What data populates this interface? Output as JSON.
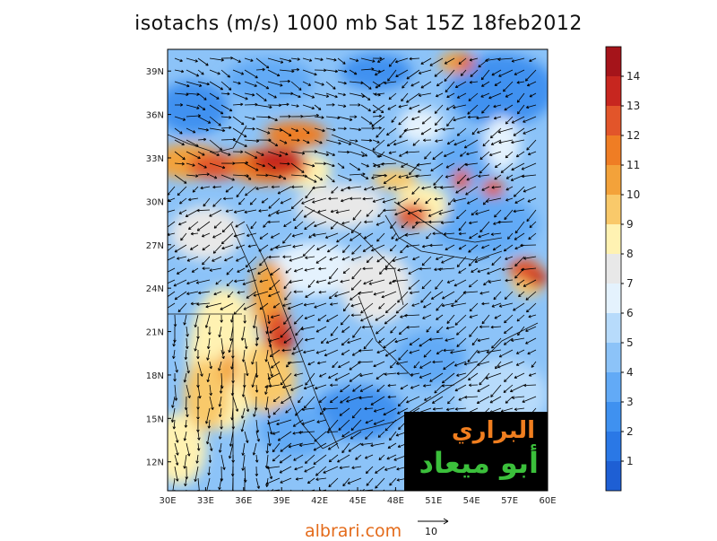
{
  "title": "isotachs (m/s) 1000 mb Sat 15Z 18feb2012",
  "map": {
    "lon_ticks": [
      "30E",
      "33E",
      "36E",
      "39E",
      "42E",
      "45E",
      "48E",
      "51E",
      "54E",
      "57E",
      "60E"
    ],
    "lat_ticks": [
      "12N",
      "15N",
      "18N",
      "21N",
      "24N",
      "27N",
      "30N",
      "33N",
      "36N",
      "39N"
    ],
    "lon_range": [
      30,
      60
    ],
    "lat_range": [
      10,
      40.5
    ]
  },
  "colorbar": {
    "labels": [
      "1",
      "2",
      "3",
      "4",
      "5",
      "6",
      "7",
      "8",
      "9",
      "10",
      "11",
      "12",
      "13",
      "14"
    ],
    "colors": [
      "#1e5fd4",
      "#2a78e6",
      "#3f91f0",
      "#62aaf6",
      "#8cc3f8",
      "#b7dbfb",
      "#e4f2fd",
      "#e8e8e8",
      "#fff2b2",
      "#f9c96a",
      "#f3a23a",
      "#ef7d24",
      "#e2552a",
      "#c7261f",
      "#a5141a"
    ]
  },
  "logo": {
    "line1": "البراري",
    "line2": "أبو ميعاد"
  },
  "footer": {
    "site": "albrari.com",
    "scale_value": "10"
  }
}
